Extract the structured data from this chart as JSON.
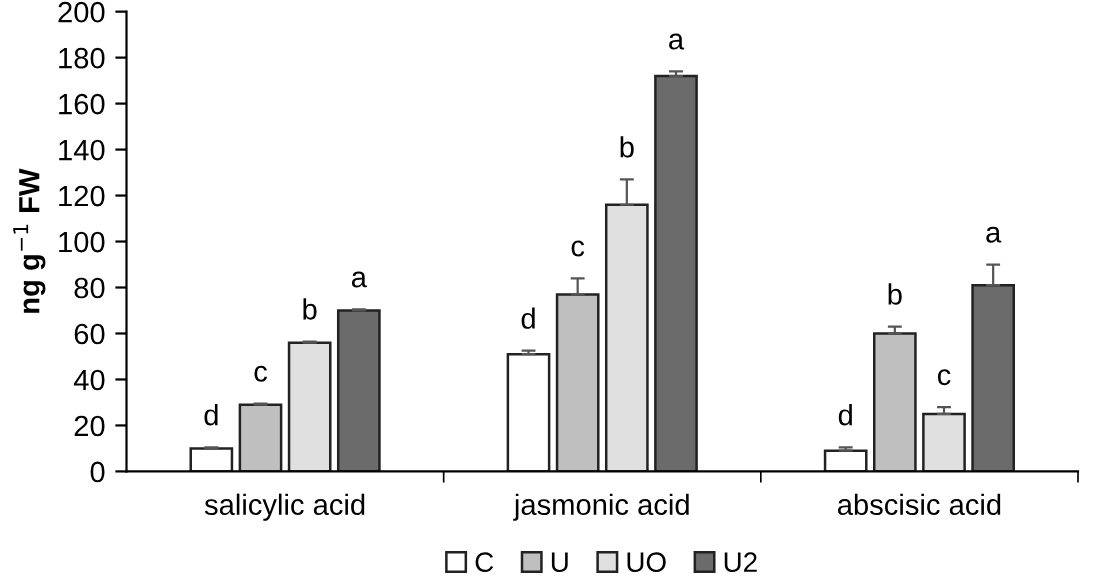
{
  "chart_data": {
    "type": "bar",
    "ylabel": "ng g$^{−1}$ FW",
    "categories": [
      "salicylic acid",
      "jasmonic acid",
      "abscisic acid"
    ],
    "series": [
      {
        "name": "C",
        "color": "#ffffff",
        "values": [
          10,
          51,
          9
        ],
        "errors": [
          0.5,
          1.5,
          1.5
        ],
        "value_labels": [
          "d",
          "d",
          "d"
        ]
      },
      {
        "name": "U",
        "color": "#bfbfbf",
        "values": [
          29,
          77,
          60
        ],
        "errors": [
          0.5,
          7,
          3
        ],
        "value_labels": [
          "c",
          "c",
          "b"
        ]
      },
      {
        "name": "UO",
        "color": "#e0e0e0",
        "values": [
          56,
          116,
          25
        ],
        "errors": [
          0.5,
          11,
          3
        ],
        "value_labels": [
          "b",
          "b",
          "c"
        ]
      },
      {
        "name": "U2",
        "color": "#6b6b6b",
        "values": [
          70,
          172,
          81
        ],
        "errors": [
          0.5,
          2,
          9
        ],
        "value_labels": [
          "a",
          "a",
          "a"
        ]
      }
    ],
    "ylim": [
      0,
      200
    ],
    "yticks": [
      0,
      20,
      40,
      60,
      80,
      100,
      120,
      140,
      160,
      180,
      200
    ],
    "grid": false,
    "legend": "bottom"
  }
}
